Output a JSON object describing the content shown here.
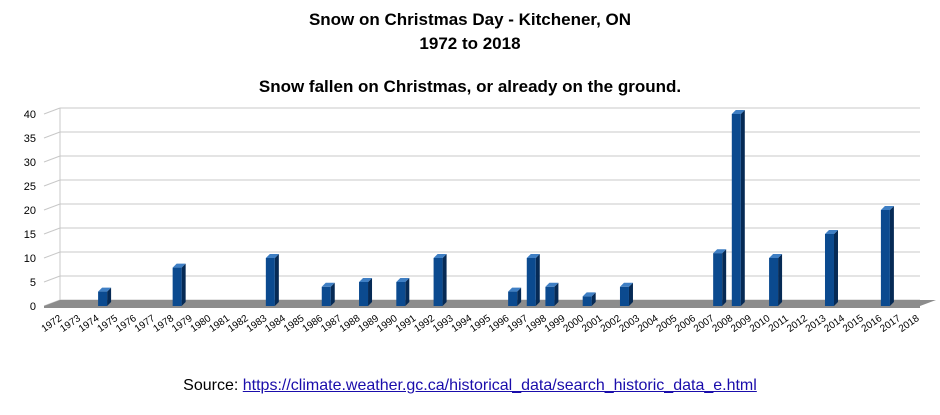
{
  "title_line1": "Snow on Christmas Day - Kitchener, ON",
  "title_line2": "1972 to 2018",
  "subtitle": "Snow fallen on Christmas, or already on the ground.",
  "source_label": "Source:",
  "source_url": "https://climate.weather.gc.ca/historical_data/search_historic_data_e.html",
  "colors": {
    "bar": "#0b4a8f",
    "bar_side": "#062a55",
    "bar_top": "#3f7fc4",
    "floor": "#8c8c8c",
    "grid": "#c8c8c8"
  },
  "chart_data": {
    "type": "bar",
    "categories": [
      "1972",
      "1973",
      "1974",
      "1975",
      "1976",
      "1977",
      "1978",
      "1979",
      "1980",
      "1981",
      "1982",
      "1983",
      "1984",
      "1985",
      "1986",
      "1987",
      "1988",
      "1989",
      "1990",
      "1991",
      "1992",
      "1993",
      "1994",
      "1995",
      "1996",
      "1997",
      "1998",
      "1999",
      "2000",
      "2001",
      "2002",
      "2003",
      "2004",
      "2005",
      "2006",
      "2007",
      "2008",
      "2009",
      "2010",
      "2011",
      "2012",
      "2013",
      "2014",
      "2015",
      "2016",
      "2017",
      "2018"
    ],
    "values": [
      0,
      0,
      3,
      0,
      0,
      0,
      8,
      0,
      0,
      0,
      0,
      10,
      0,
      0,
      4,
      0,
      5,
      0,
      5,
      0,
      10,
      0,
      0,
      0,
      3,
      10,
      4,
      0,
      2,
      0,
      4,
      0,
      0,
      0,
      0,
      11,
      40,
      0,
      10,
      0,
      0,
      15,
      0,
      0,
      20,
      0,
      0
    ],
    "ylim": [
      0,
      40
    ],
    "yticks": [
      0,
      5,
      10,
      15,
      20,
      25,
      30,
      35,
      40
    ],
    "grid": true,
    "legend": "none"
  }
}
